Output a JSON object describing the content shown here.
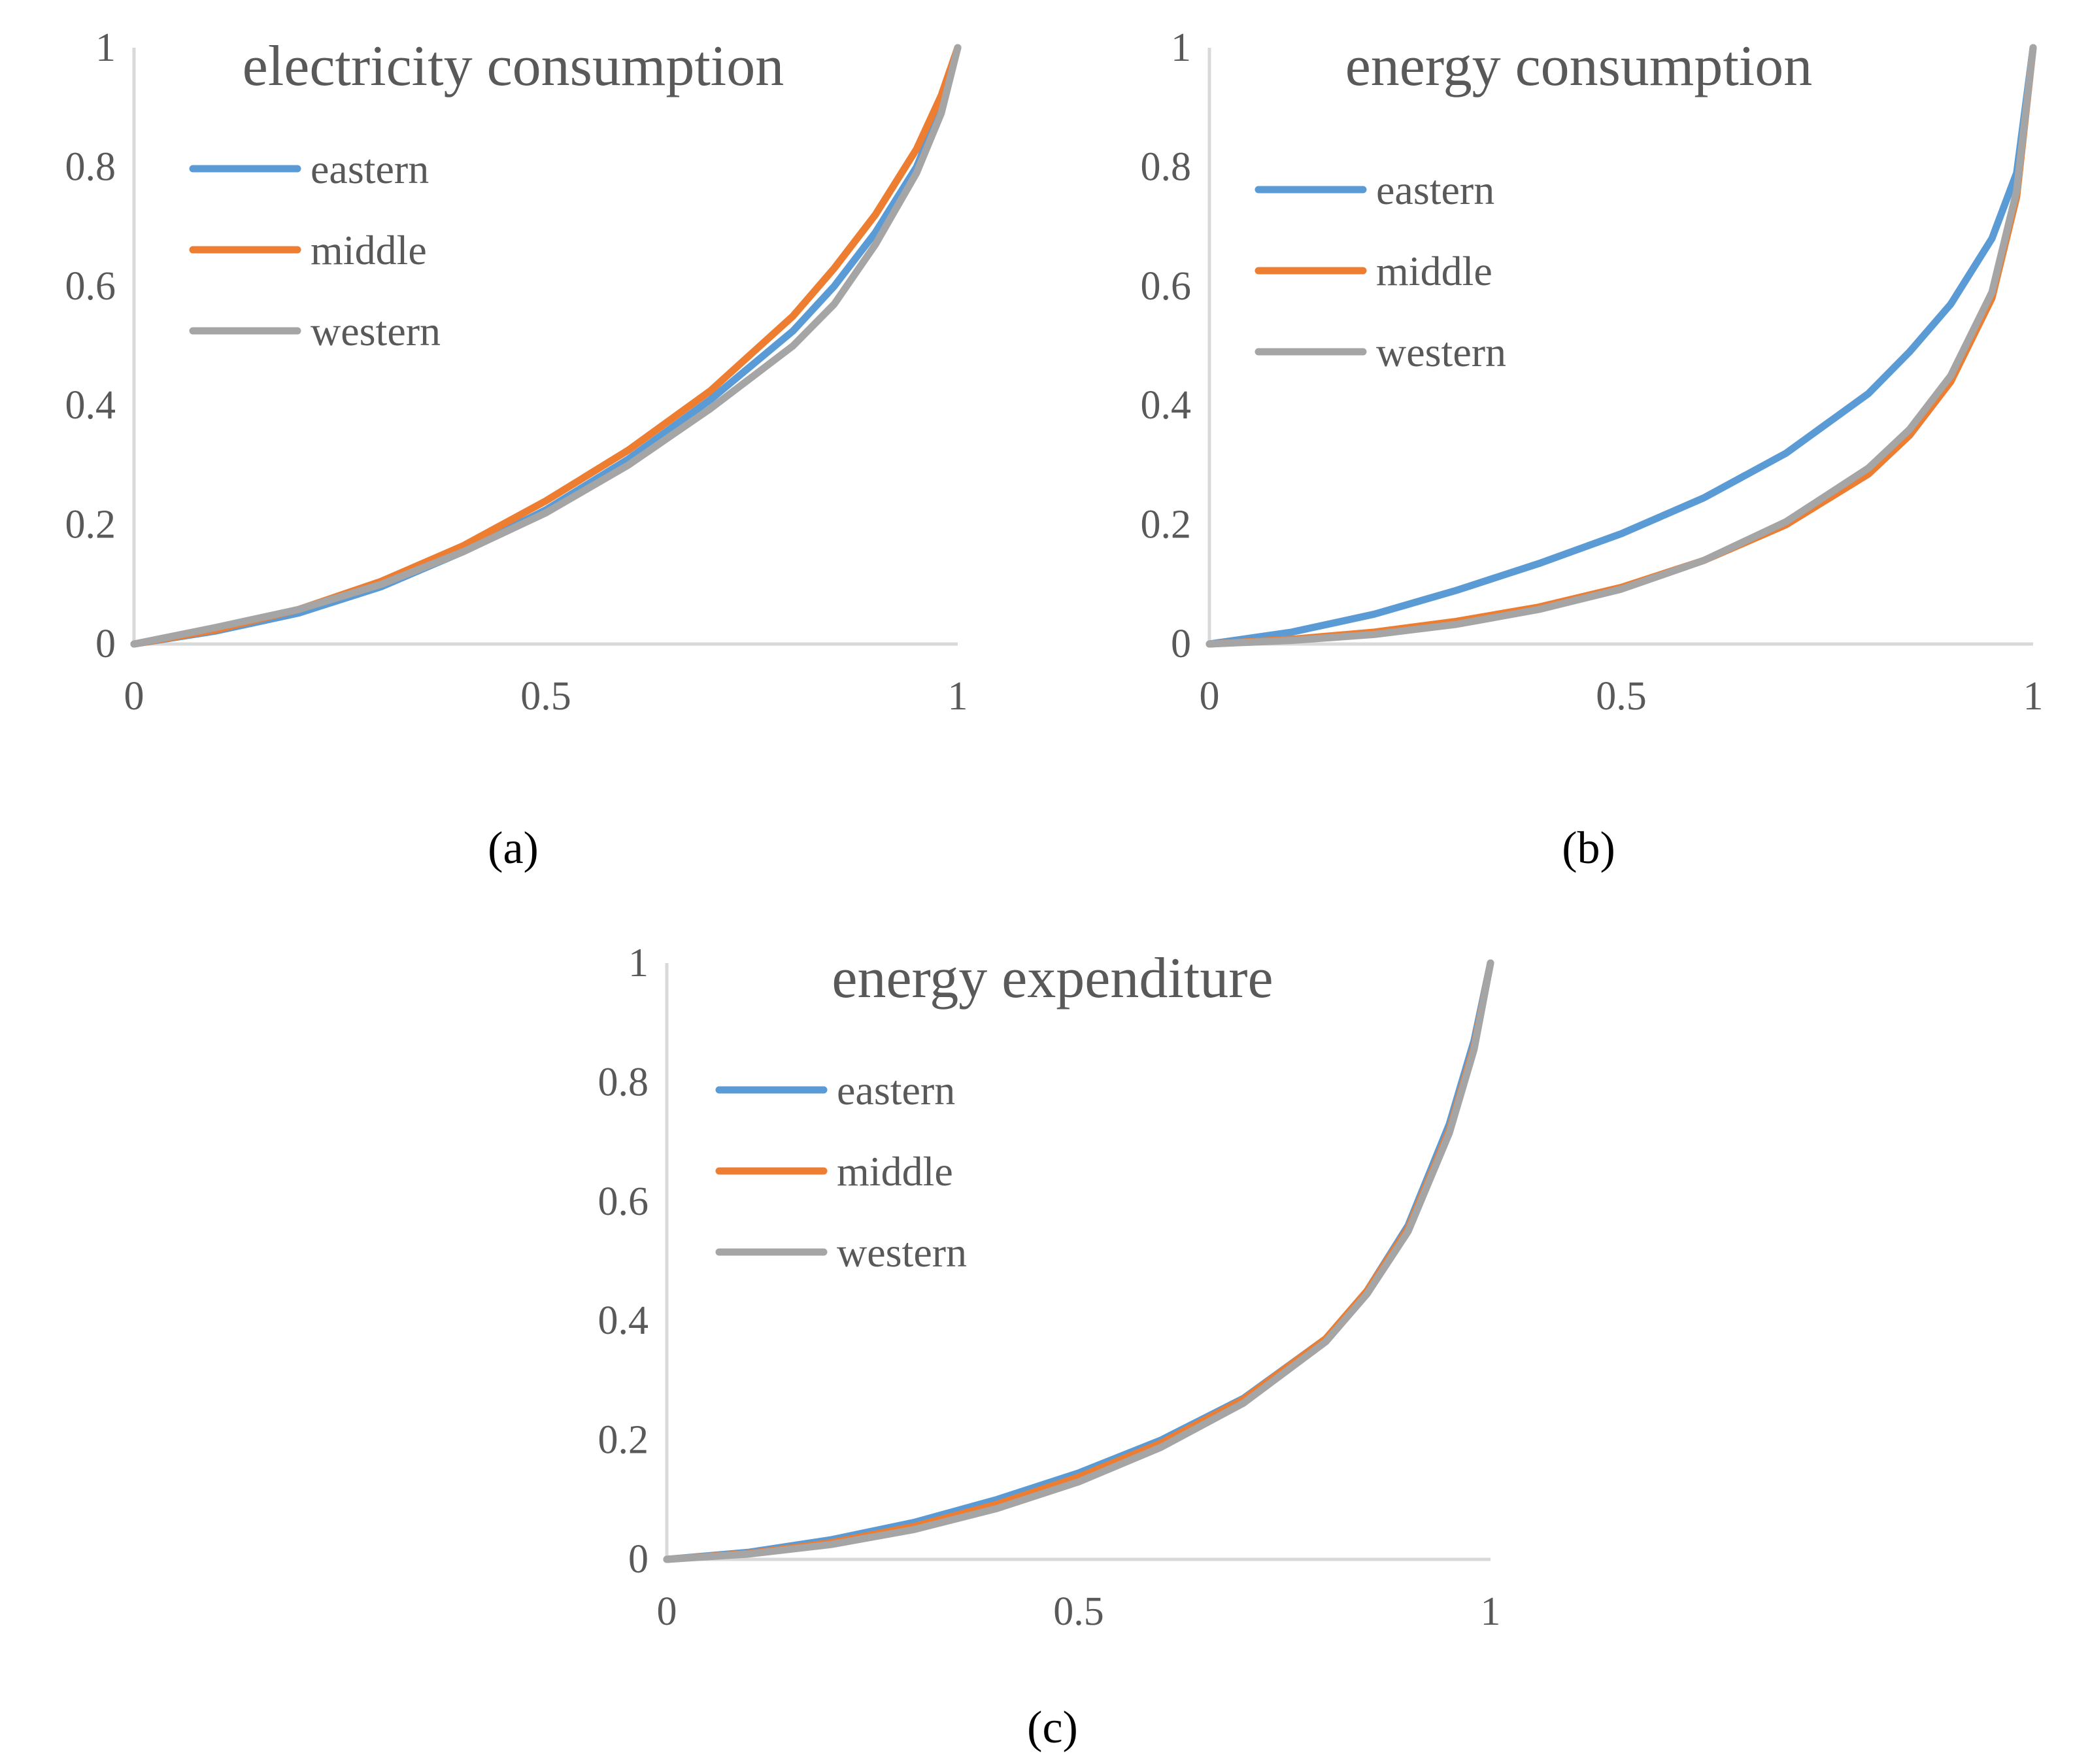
{
  "chart_data": [
    {
      "type": "line",
      "title": "electricity consumption",
      "caption": "(a)",
      "xlabel": "",
      "ylabel": "",
      "xlim": [
        0,
        1
      ],
      "ylim": [
        0,
        1
      ],
      "x_ticks": [
        0,
        0.5,
        1
      ],
      "x_tick_labels": [
        "0",
        "0.5",
        "1"
      ],
      "y_ticks": [
        0,
        0.2,
        0.4,
        0.6,
        0.8,
        1
      ],
      "y_tick_labels": [
        "0",
        "0.2",
        "0.4",
        "0.6",
        "0.8",
        "1"
      ],
      "legend_position": "top-left",
      "grid": false,
      "series": [
        {
          "name": "eastern",
          "color": "#5B9BD5",
          "x": [
            0,
            0.1,
            0.2,
            0.3,
            0.4,
            0.5,
            0.6,
            0.7,
            0.8,
            0.85,
            0.9,
            0.95,
            0.98,
            1.0
          ],
          "y": [
            0,
            0.022,
            0.052,
            0.096,
            0.155,
            0.225,
            0.31,
            0.41,
            0.525,
            0.6,
            0.69,
            0.8,
            0.9,
            1.0
          ]
        },
        {
          "name": "middle",
          "color": "#ED7D31",
          "x": [
            0,
            0.1,
            0.2,
            0.3,
            0.4,
            0.5,
            0.6,
            0.7,
            0.8,
            0.85,
            0.9,
            0.95,
            0.98,
            1.0
          ],
          "y": [
            0,
            0.024,
            0.058,
            0.105,
            0.165,
            0.24,
            0.325,
            0.425,
            0.55,
            0.63,
            0.72,
            0.83,
            0.92,
            1.0
          ]
        },
        {
          "name": "western",
          "color": "#A5A5A5",
          "x": [
            0,
            0.1,
            0.2,
            0.3,
            0.4,
            0.5,
            0.6,
            0.7,
            0.8,
            0.85,
            0.9,
            0.95,
            0.98,
            1.0
          ],
          "y": [
            0,
            0.028,
            0.058,
            0.1,
            0.155,
            0.22,
            0.3,
            0.395,
            0.5,
            0.57,
            0.67,
            0.79,
            0.89,
            1.0
          ]
        }
      ]
    },
    {
      "type": "line",
      "title": "energy consumption",
      "caption": "(b)",
      "xlabel": "",
      "ylabel": "",
      "xlim": [
        0,
        1
      ],
      "ylim": [
        0,
        1
      ],
      "x_ticks": [
        0,
        0.5,
        1
      ],
      "x_tick_labels": [
        "0",
        "0.5",
        "1"
      ],
      "y_ticks": [
        0,
        0.2,
        0.4,
        0.6,
        0.8,
        1
      ],
      "y_tick_labels": [
        "0",
        "0.2",
        "0.4",
        "0.6",
        "0.8",
        "1"
      ],
      "legend_position": "top-left",
      "grid": false,
      "series": [
        {
          "name": "eastern",
          "color": "#5B9BD5",
          "x": [
            0,
            0.1,
            0.2,
            0.3,
            0.4,
            0.5,
            0.6,
            0.7,
            0.8,
            0.85,
            0.9,
            0.95,
            0.98,
            1.0
          ],
          "y": [
            0,
            0.02,
            0.05,
            0.09,
            0.135,
            0.185,
            0.245,
            0.32,
            0.42,
            0.49,
            0.57,
            0.68,
            0.79,
            1.0
          ]
        },
        {
          "name": "middle",
          "color": "#ED7D31",
          "x": [
            0,
            0.1,
            0.2,
            0.3,
            0.4,
            0.5,
            0.6,
            0.7,
            0.8,
            0.85,
            0.9,
            0.95,
            0.98,
            1.0
          ],
          "y": [
            0,
            0.008,
            0.02,
            0.038,
            0.062,
            0.095,
            0.14,
            0.2,
            0.285,
            0.35,
            0.44,
            0.58,
            0.75,
            1.0
          ]
        },
        {
          "name": "western",
          "color": "#A5A5A5",
          "x": [
            0,
            0.1,
            0.2,
            0.3,
            0.4,
            0.5,
            0.6,
            0.7,
            0.8,
            0.85,
            0.9,
            0.95,
            0.98,
            1.0
          ],
          "y": [
            0,
            0.006,
            0.016,
            0.033,
            0.058,
            0.092,
            0.14,
            0.205,
            0.295,
            0.36,
            0.45,
            0.59,
            0.76,
            1.0
          ]
        }
      ]
    },
    {
      "type": "line",
      "title": "energy expenditure",
      "caption": "(c)",
      "xlabel": "",
      "ylabel": "",
      "xlim": [
        0,
        1
      ],
      "ylim": [
        0,
        1
      ],
      "x_ticks": [
        0,
        0.5,
        1
      ],
      "x_tick_labels": [
        "0",
        "0.5",
        "1"
      ],
      "y_ticks": [
        0,
        0.2,
        0.4,
        0.6,
        0.8,
        1
      ],
      "y_tick_labels": [
        "0",
        "0.2",
        "0.4",
        "0.6",
        "0.8",
        "1"
      ],
      "legend_position": "top-left",
      "grid": false,
      "series": [
        {
          "name": "eastern",
          "color": "#5B9BD5",
          "x": [
            0,
            0.1,
            0.2,
            0.3,
            0.4,
            0.5,
            0.6,
            0.7,
            0.8,
            0.85,
            0.9,
            0.95,
            0.98,
            1.0
          ],
          "y": [
            0,
            0.012,
            0.033,
            0.062,
            0.1,
            0.145,
            0.2,
            0.27,
            0.37,
            0.45,
            0.56,
            0.73,
            0.87,
            1.0
          ]
        },
        {
          "name": "middle",
          "color": "#ED7D31",
          "x": [
            0,
            0.1,
            0.2,
            0.3,
            0.4,
            0.5,
            0.6,
            0.7,
            0.8,
            0.85,
            0.9,
            0.95,
            0.98,
            1.0
          ],
          "y": [
            0,
            0.01,
            0.028,
            0.055,
            0.092,
            0.138,
            0.195,
            0.268,
            0.37,
            0.45,
            0.555,
            0.72,
            0.86,
            1.0
          ]
        },
        {
          "name": "western",
          "color": "#A5A5A5",
          "x": [
            0,
            0.1,
            0.2,
            0.3,
            0.4,
            0.5,
            0.6,
            0.7,
            0.8,
            0.85,
            0.9,
            0.95,
            0.98,
            1.0
          ],
          "y": [
            0,
            0.009,
            0.025,
            0.05,
            0.085,
            0.13,
            0.188,
            0.262,
            0.365,
            0.445,
            0.55,
            0.715,
            0.855,
            1.0
          ]
        }
      ]
    }
  ]
}
